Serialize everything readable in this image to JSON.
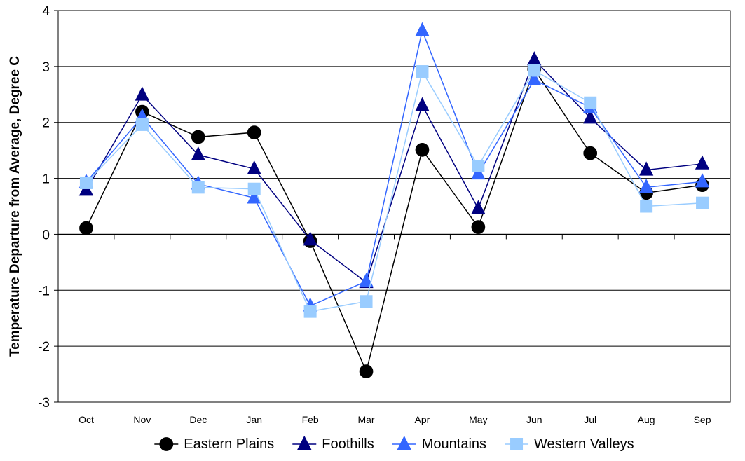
{
  "chart_data": {
    "type": "line",
    "title": "",
    "xlabel": "",
    "ylabel": "Temperature Departure from Average, Degree C",
    "categories": [
      "Oct",
      "Nov",
      "Dec",
      "Jan",
      "Feb",
      "Mar",
      "Apr",
      "May",
      "Jun",
      "Jul",
      "Aug",
      "Sep"
    ],
    "ylim": [
      -3,
      4
    ],
    "yticks": [
      -3,
      -2,
      -1,
      0,
      1,
      2,
      3,
      4
    ],
    "grid": "horizontal",
    "legend": "bottom",
    "series": [
      {
        "name": "Eastern Plains",
        "color": "#000000",
        "marker": "circle",
        "values": [
          0.11,
          2.19,
          1.74,
          1.82,
          -0.12,
          -2.45,
          1.51,
          0.13,
          2.95,
          1.45,
          0.74,
          0.88
        ]
      },
      {
        "name": "Foothills",
        "color": "#000080",
        "marker": "triangle",
        "values": [
          0.79,
          2.49,
          1.42,
          1.17,
          -0.1,
          -0.86,
          2.3,
          0.46,
          3.12,
          2.08,
          1.15,
          1.26
        ]
      },
      {
        "name": "Mountains",
        "color": "#3366ff",
        "marker": "triangle",
        "values": [
          0.93,
          2.1,
          0.9,
          0.65,
          -1.28,
          -0.84,
          3.64,
          1.08,
          2.76,
          2.27,
          0.84,
          0.94
        ]
      },
      {
        "name": "Western Valleys",
        "color": "#99ccff",
        "marker": "square",
        "values": [
          0.92,
          1.96,
          0.84,
          0.81,
          -1.38,
          -1.2,
          2.91,
          1.22,
          2.93,
          2.35,
          0.5,
          0.56
        ]
      }
    ]
  }
}
